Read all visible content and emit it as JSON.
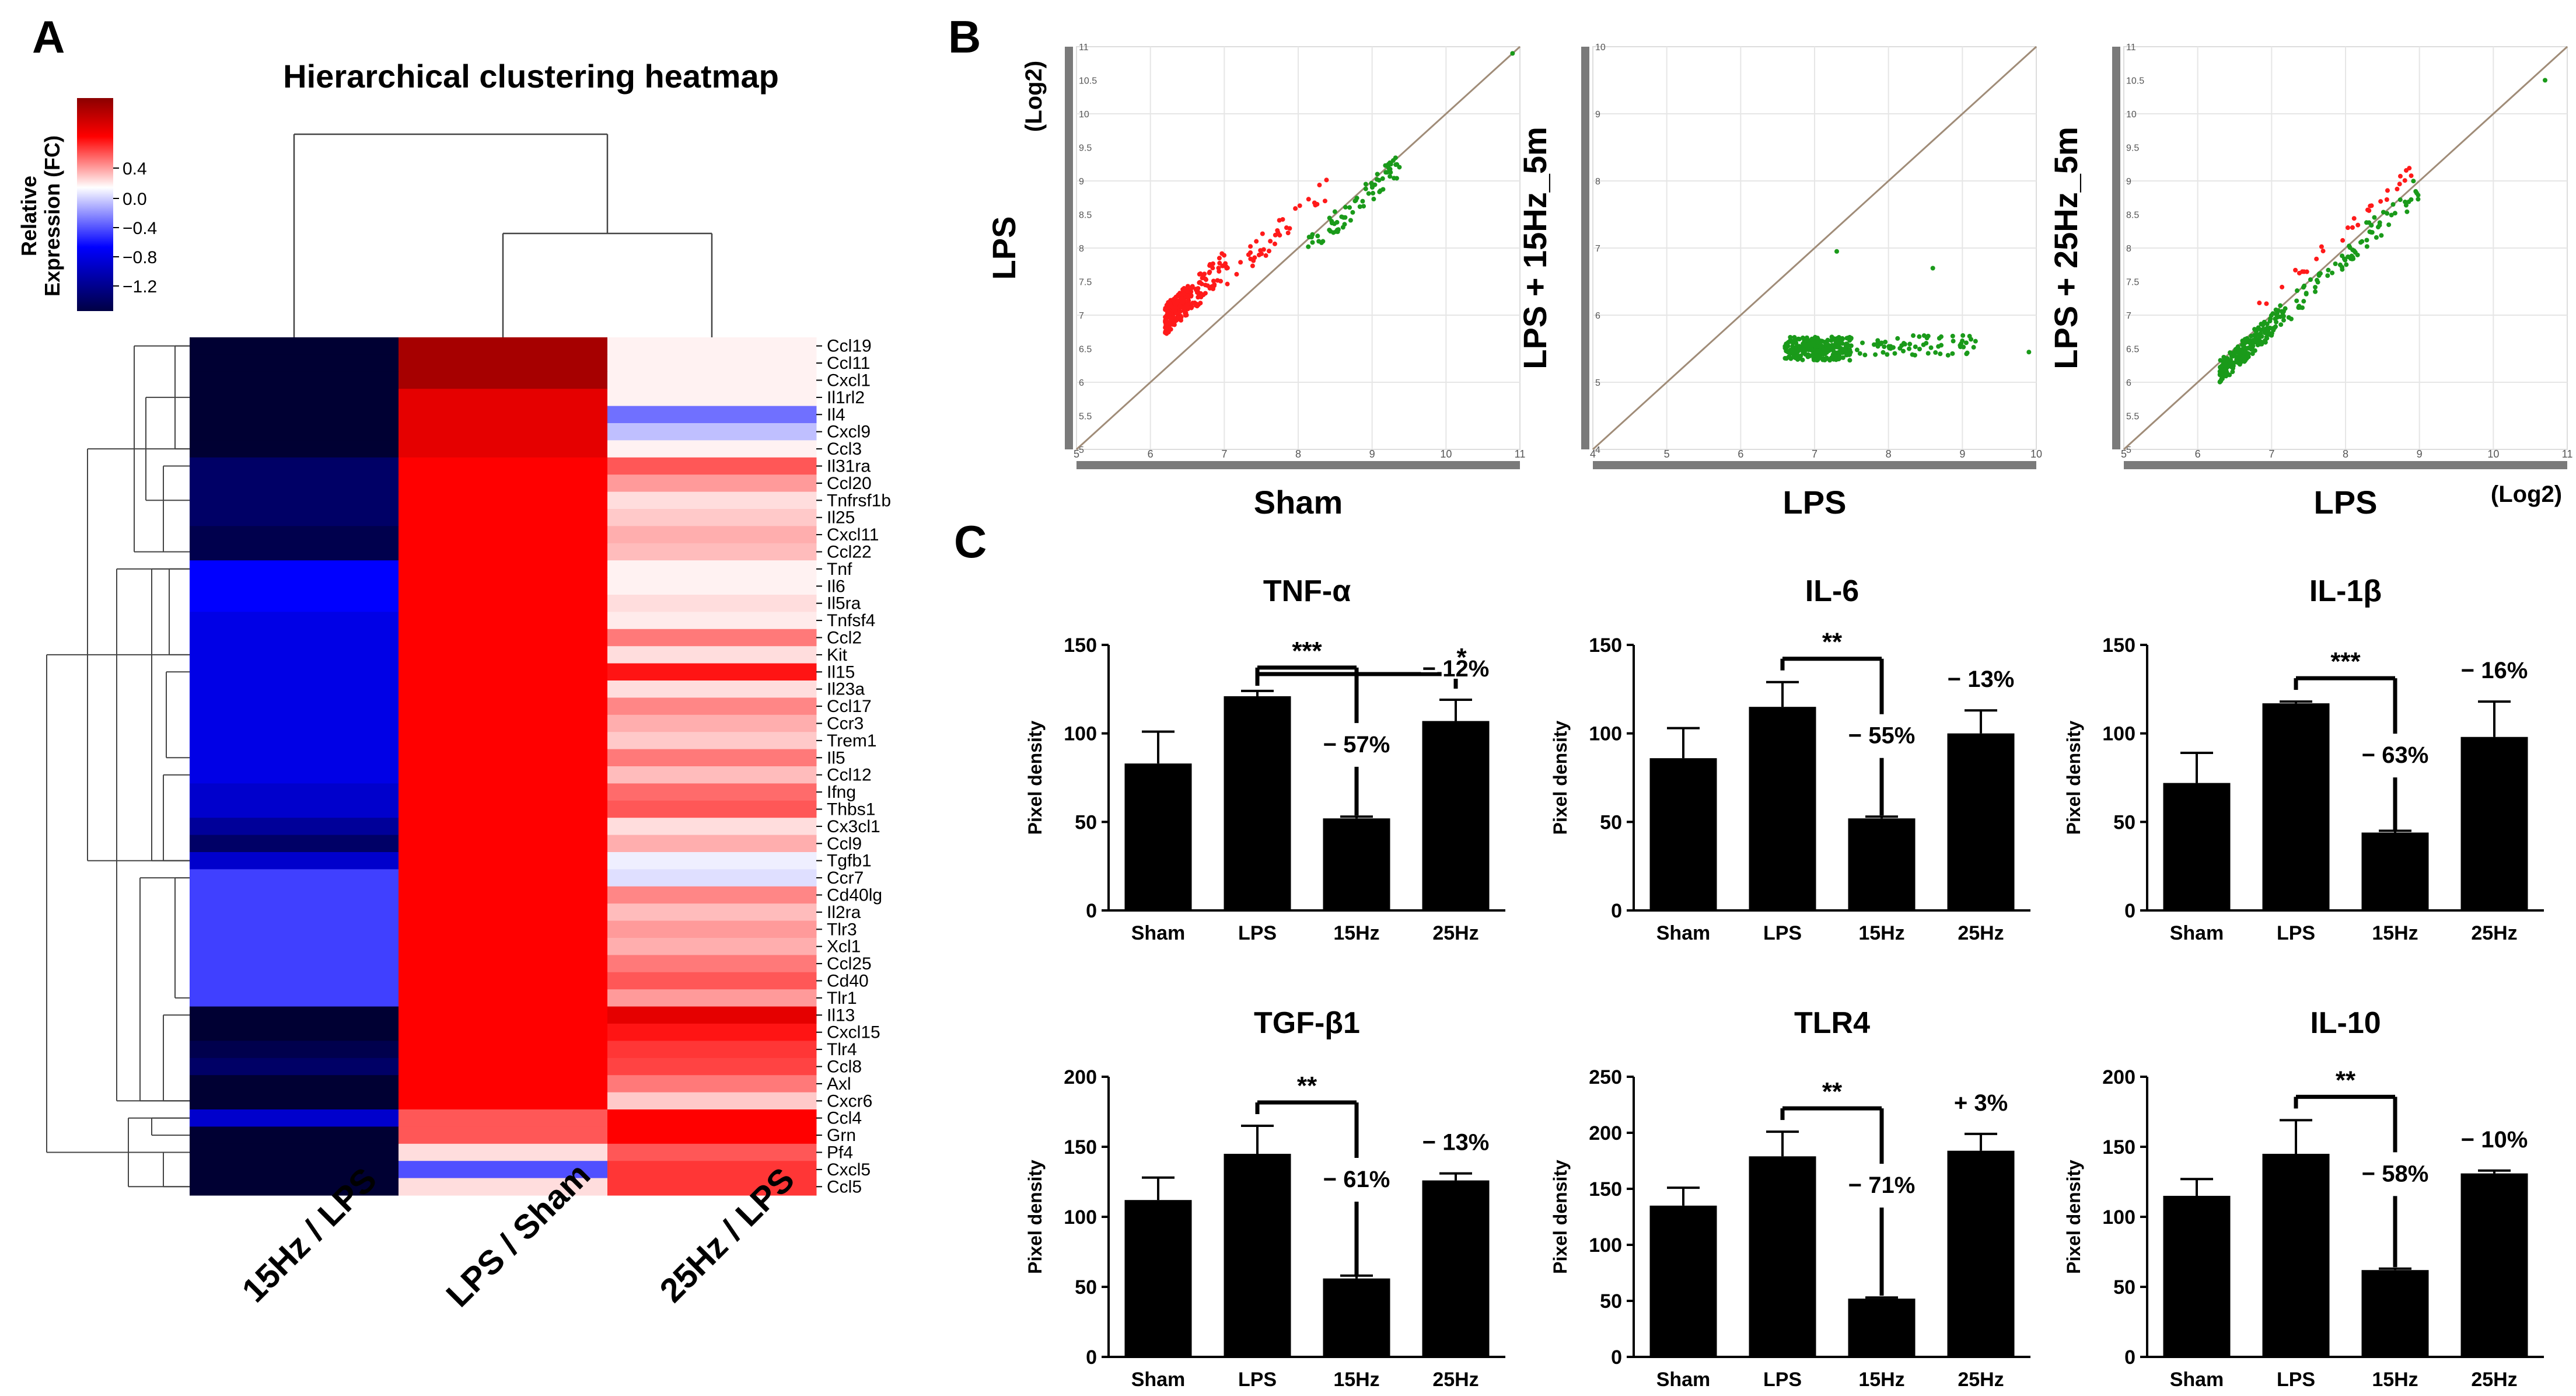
{
  "panels": {
    "a": "A",
    "b": "B",
    "c": "C"
  },
  "heatmap": {
    "title": "Hierarchical clustering heatmap",
    "legend_title_1": "Relative",
    "legend_title_2": "Expression (FC)",
    "legend_ticks": [
      "0.4",
      "0.0",
      "−0.4",
      "−0.8",
      "−1.2"
    ],
    "columns": [
      "15Hz / LPS",
      "LPS / Sham",
      "25Hz / LPS"
    ],
    "colors": {
      "low": "#000033",
      "mid": "#ffffff",
      "high": "#ff0000"
    }
  },
  "scatter": {
    "ylog": "(Log2)",
    "xlog": "(Log2)",
    "plots": [
      {
        "ylabel": "LPS",
        "xlabel": "Sham",
        "xticks": [
          "5",
          "6",
          "7",
          "8",
          "9",
          "10",
          "11"
        ],
        "yticks": [
          "5",
          "5.5",
          "6",
          "6.5",
          "7",
          "7.5",
          "8",
          "8.5",
          "9",
          "9.5",
          "10",
          "10.5",
          "11"
        ]
      },
      {
        "ylabel": "LPS + 15Hz_5m",
        "xlabel": "LPS",
        "xticks": [
          "4",
          "5",
          "6",
          "7",
          "8",
          "9",
          "10"
        ],
        "yticks": [
          "4",
          "5",
          "6",
          "7",
          "8",
          "9",
          "10"
        ]
      },
      {
        "ylabel": "LPS + 25Hz_5m",
        "xlabel": "LPS",
        "xticks": [
          "5",
          "6",
          "7",
          "8",
          "9",
          "10",
          "11"
        ],
        "yticks": [
          "5",
          "5.5",
          "6",
          "6.5",
          "7",
          "7.5",
          "8",
          "8.5",
          "9",
          "9.5",
          "10",
          "10.5",
          "11"
        ]
      }
    ],
    "colors": {
      "up": "#ff1a1a",
      "down": "#1a9a1a",
      "diag": "#a08c78"
    }
  },
  "bar_ylabel": "Pixel density",
  "chart_data": {
    "heatmap": {
      "type": "heatmap",
      "title": "Hierarchical clustering heatmap",
      "columns": [
        "15Hz / LPS",
        "LPS / Sham",
        "25Hz / LPS"
      ],
      "scale": [
        -1.2,
        0.6
      ],
      "rows": [
        {
          "gene": "Ccl19",
          "values": [
            -1.2,
            0.62,
            0.02
          ]
        },
        {
          "gene": "Ccl11",
          "values": [
            -1.2,
            0.62,
            0.02
          ]
        },
        {
          "gene": "Cxcl1",
          "values": [
            -1.2,
            0.62,
            0.02
          ]
        },
        {
          "gene": "Il1rl2",
          "values": [
            -1.2,
            0.5,
            0.02
          ]
        },
        {
          "gene": "Il4",
          "values": [
            -1.2,
            0.5,
            -0.45
          ]
        },
        {
          "gene": "Cxcl9",
          "values": [
            -1.2,
            0.5,
            -0.2
          ]
        },
        {
          "gene": "Ccl3",
          "values": [
            -1.2,
            0.5,
            0.02
          ]
        },
        {
          "gene": "Il31ra",
          "values": [
            -1.1,
            0.42,
            0.25
          ]
        },
        {
          "gene": "Ccl20",
          "values": [
            -1.1,
            0.42,
            0.15
          ]
        },
        {
          "gene": "Tnfrsf1b",
          "values": [
            -1.1,
            0.42,
            0.05
          ]
        },
        {
          "gene": "Il25",
          "values": [
            -1.1,
            0.45,
            0.08
          ]
        },
        {
          "gene": "Cxcl11",
          "values": [
            -1.15,
            0.45,
            0.12
          ]
        },
        {
          "gene": "Ccl22",
          "values": [
            -1.15,
            0.45,
            0.1
          ]
        },
        {
          "gene": "Tnf",
          "values": [
            -0.8,
            0.38,
            0.02
          ]
        },
        {
          "gene": "Il6",
          "values": [
            -0.8,
            0.38,
            0.02
          ]
        },
        {
          "gene": "Il5ra",
          "values": [
            -0.8,
            0.38,
            0.05
          ]
        },
        {
          "gene": "Tnfsf4",
          "values": [
            -0.85,
            0.38,
            0.03
          ]
        },
        {
          "gene": "Ccl2",
          "values": [
            -0.85,
            0.38,
            0.2
          ]
        },
        {
          "gene": "Kit",
          "values": [
            -0.85,
            0.38,
            0.05
          ]
        },
        {
          "gene": "Il15",
          "values": [
            -0.85,
            0.38,
            0.35
          ]
        },
        {
          "gene": "Il23a",
          "values": [
            -0.85,
            0.38,
            0.05
          ]
        },
        {
          "gene": "Ccl17",
          "values": [
            -0.85,
            0.38,
            0.18
          ]
        },
        {
          "gene": "Ccr3",
          "values": [
            -0.85,
            0.38,
            0.12
          ]
        },
        {
          "gene": "Trem1",
          "values": [
            -0.85,
            0.38,
            0.08
          ]
        },
        {
          "gene": "Il5",
          "values": [
            -0.85,
            0.38,
            0.2
          ]
        },
        {
          "gene": "Ccl12",
          "values": [
            -0.85,
            0.38,
            0.1
          ]
        },
        {
          "gene": "Ifng",
          "values": [
            -0.9,
            0.38,
            0.22
          ]
        },
        {
          "gene": "Thbs1",
          "values": [
            -0.9,
            0.38,
            0.25
          ]
        },
        {
          "gene": "Cx3cl1",
          "values": [
            -1.0,
            0.38,
            0.05
          ]
        },
        {
          "gene": "Ccl9",
          "values": [
            -1.1,
            0.38,
            0.12
          ]
        },
        {
          "gene": "Tgfb1",
          "values": [
            -0.9,
            0.38,
            -0.05
          ]
        },
        {
          "gene": "Ccr7",
          "values": [
            -0.6,
            0.38,
            -0.1
          ]
        },
        {
          "gene": "Cd40lg",
          "values": [
            -0.6,
            0.38,
            0.18
          ]
        },
        {
          "gene": "Il2ra",
          "values": [
            -0.6,
            0.38,
            0.1
          ]
        },
        {
          "gene": "Tlr3",
          "values": [
            -0.6,
            0.38,
            0.15
          ]
        },
        {
          "gene": "Xcl1",
          "values": [
            -0.6,
            0.38,
            0.12
          ]
        },
        {
          "gene": "Ccl25",
          "values": [
            -0.6,
            0.38,
            0.2
          ]
        },
        {
          "gene": "Cd40",
          "values": [
            -0.6,
            0.38,
            0.25
          ]
        },
        {
          "gene": "Tlr1",
          "values": [
            -0.6,
            0.38,
            0.15
          ]
        },
        {
          "gene": "Il13",
          "values": [
            -1.2,
            0.38,
            0.5
          ]
        },
        {
          "gene": "Cxcl15",
          "values": [
            -1.2,
            0.38,
            0.35
          ]
        },
        {
          "gene": "Tlr4",
          "values": [
            -1.15,
            0.38,
            0.3
          ]
        },
        {
          "gene": "Ccl8",
          "values": [
            -1.1,
            0.38,
            0.28
          ]
        },
        {
          "gene": "Axl",
          "values": [
            -1.2,
            0.38,
            0.2
          ]
        },
        {
          "gene": "Cxcr6",
          "values": [
            -1.2,
            0.38,
            0.08
          ]
        },
        {
          "gene": "Ccl4",
          "values": [
            -0.9,
            0.25,
            0.45
          ]
        },
        {
          "gene": "Grn",
          "values": [
            -1.2,
            0.25,
            0.45
          ]
        },
        {
          "gene": "Pf4",
          "values": [
            -1.2,
            0.05,
            0.25
          ]
        },
        {
          "gene": "Cxcl5",
          "values": [
            -1.2,
            -0.55,
            0.3
          ]
        },
        {
          "gene": "Ccl5",
          "values": [
            -1.2,
            0.05,
            0.3
          ]
        }
      ]
    },
    "bars": [
      {
        "type": "bar",
        "title": "TNF-α",
        "categories": [
          "Sham",
          "LPS",
          "15Hz",
          "25Hz"
        ],
        "values": [
          83,
          121,
          52,
          107
        ],
        "errors": [
          18,
          3,
          1,
          12
        ],
        "ylim": [
          0,
          150
        ],
        "yticks": [
          "0",
          "50",
          "100",
          "150"
        ],
        "ylabel": "Pixel density",
        "annotations": [
          {
            "text": "***",
            "from": 1,
            "to": 2
          },
          {
            "text": "*",
            "from": 1,
            "to": 3
          },
          {
            "text": "− 57%",
            "bar": 2
          },
          {
            "text": "− 12%",
            "bar": 3
          }
        ]
      },
      {
        "type": "bar",
        "title": "IL-6",
        "categories": [
          "Sham",
          "LPS",
          "15Hz",
          "25Hz"
        ],
        "values": [
          86,
          115,
          52,
          100
        ],
        "errors": [
          17,
          14,
          1,
          13
        ],
        "ylim": [
          0,
          150
        ],
        "yticks": [
          "0",
          "50",
          "100",
          "150"
        ],
        "ylabel": "Pixel density",
        "annotations": [
          {
            "text": "**",
            "from": 1,
            "to": 2
          },
          {
            "text": "− 55%",
            "bar": 2
          },
          {
            "text": "− 13%",
            "bar": 3
          }
        ]
      },
      {
        "type": "bar",
        "title": "IL-1β",
        "categories": [
          "Sham",
          "LPS",
          "15Hz",
          "25Hz"
        ],
        "values": [
          72,
          117,
          44,
          98
        ],
        "errors": [
          17,
          1,
          1,
          20
        ],
        "ylim": [
          0,
          150
        ],
        "yticks": [
          "0",
          "50",
          "100",
          "150"
        ],
        "ylabel": "Pixel density",
        "annotations": [
          {
            "text": "***",
            "from": 1,
            "to": 2
          },
          {
            "text": "− 63%",
            "bar": 2
          },
          {
            "text": "− 16%",
            "bar": 3
          }
        ]
      },
      {
        "type": "bar",
        "title": "TGF-β1",
        "categories": [
          "Sham",
          "LPS",
          "15Hz",
          "25Hz"
        ],
        "values": [
          112,
          145,
          56,
          126
        ],
        "errors": [
          16,
          20,
          2,
          5
        ],
        "ylim": [
          0,
          200
        ],
        "yticks": [
          "0",
          "50",
          "100",
          "150",
          "200"
        ],
        "ylabel": "Pixel density",
        "annotations": [
          {
            "text": "**",
            "from": 1,
            "to": 2
          },
          {
            "text": "− 61%",
            "bar": 2
          },
          {
            "text": "− 13%",
            "bar": 3
          }
        ]
      },
      {
        "type": "bar",
        "title": "TLR4",
        "categories": [
          "Sham",
          "LPS",
          "15Hz",
          "25Hz"
        ],
        "values": [
          135,
          179,
          52,
          184
        ],
        "errors": [
          16,
          22,
          1,
          15
        ],
        "ylim": [
          0,
          250
        ],
        "yticks": [
          "0",
          "50",
          "100",
          "150",
          "200",
          "250"
        ],
        "ylabel": "Pixel density",
        "annotations": [
          {
            "text": "**",
            "from": 1,
            "to": 2
          },
          {
            "text": "− 71%",
            "bar": 2
          },
          {
            "text": "+ 3%",
            "bar": 3
          }
        ]
      },
      {
        "type": "bar",
        "title": "IL-10",
        "categories": [
          "Sham",
          "LPS",
          "15Hz",
          "25Hz"
        ],
        "values": [
          115,
          145,
          62,
          131
        ],
        "errors": [
          12,
          24,
          1,
          2
        ],
        "ylim": [
          0,
          200
        ],
        "yticks": [
          "0",
          "50",
          "100",
          "150",
          "200"
        ],
        "ylabel": "Pixel density",
        "annotations": [
          {
            "text": "**",
            "from": 1,
            "to": 2
          },
          {
            "text": "− 58%",
            "bar": 2
          },
          {
            "text": "− 10%",
            "bar": 3
          }
        ]
      }
    ]
  }
}
